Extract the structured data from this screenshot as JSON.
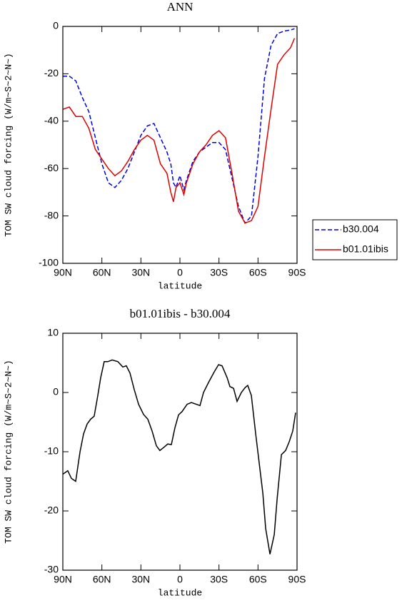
{
  "chart_data": [
    {
      "type": "line",
      "title": "ANN",
      "xlabel": "latitude",
      "ylabel": "TOM SW cloud forcing (W/m~S~2~N~)",
      "x": [
        90,
        85,
        80,
        75,
        70,
        65,
        60,
        55,
        50,
        45,
        40,
        35,
        30,
        25,
        20,
        15,
        10,
        7,
        5,
        3,
        0,
        -3,
        -5,
        -10,
        -15,
        -20,
        -25,
        -30,
        -35,
        -40,
        -45,
        -50,
        -55,
        -60,
        -65,
        -70,
        -75,
        -80,
        -85,
        -88
      ],
      "series": [
        {
          "name": "b30.004",
          "color": "#0000e0",
          "dashed": true,
          "values": [
            -21,
            -21,
            -23,
            -30,
            -36,
            -47,
            -58,
            -66,
            -68,
            -65,
            -60,
            -53,
            -46,
            -42,
            -41,
            -47,
            -53,
            -58,
            -66,
            -68,
            -63,
            -69,
            -65,
            -57,
            -53,
            -51,
            -49,
            -49,
            -52,
            -64,
            -76,
            -83,
            -80,
            -55,
            -22,
            -8,
            -3,
            -2,
            -1.5,
            -1
          ]
        },
        {
          "name": "b01.01ibis",
          "color": "#e00000",
          "dashed": false,
          "values": [
            -35,
            -34,
            -38,
            -38,
            -43,
            -52,
            -56,
            -60,
            -63,
            -61,
            -57,
            -52,
            -48,
            -46,
            -48,
            -58,
            -62,
            -70,
            -74,
            -68,
            -66,
            -71,
            -66,
            -58,
            -53,
            -50,
            -46,
            -44,
            -47,
            -62,
            -78,
            -83,
            -82,
            -76,
            -55,
            -35,
            -16,
            -12,
            -9,
            -5
          ]
        }
      ],
      "xlim": [
        90,
        -90
      ],
      "xticks": [
        {
          "value": 90,
          "label": "90N"
        },
        {
          "value": 60,
          "label": "60N"
        },
        {
          "value": 30,
          "label": "30N"
        },
        0,
        {
          "value": -30,
          "label": "30S"
        },
        {
          "value": -60,
          "label": "60S"
        },
        {
          "value": -90,
          "label": "90S"
        }
      ],
      "ylim": [
        -100,
        0
      ],
      "yticks": [
        -100,
        -80,
        -60,
        -40,
        -20,
        0
      ],
      "legend": "right"
    },
    {
      "type": "line",
      "title": "b01.01ibis - b30.004",
      "xlabel": "latitude",
      "ylabel": "TOM SW cloud forcing (W/m~S~2~N~)",
      "x": [
        90,
        86.2,
        83.4,
        80.1,
        76.8,
        74.1,
        71.3,
        68.6,
        65.9,
        63.1,
        60.9,
        58.2,
        55.4,
        52.1,
        47.7,
        43.9,
        41.2,
        38.4,
        35.1,
        31.8,
        28,
        24.7,
        21.4,
        18.1,
        15.4,
        12.1,
        9.4,
        6.6,
        3.9,
        1.1,
        -1.7,
        -5.5,
        -8.8,
        -12.6,
        -15.4,
        -18.1,
        -22,
        -26.4,
        -29.7,
        -32.4,
        -36.3,
        -38.4,
        -41.2,
        -43.9,
        -47.2,
        -50,
        -52.1,
        -54.9,
        -58.2,
        -61.5,
        -63.7,
        -65.9,
        -69.2,
        -72.5,
        -74.7,
        -78,
        -81.2,
        -84,
        -86.7,
        -88.9
      ],
      "values": [
        -13.8,
        -13.2,
        -14.5,
        -15,
        -10,
        -7,
        -5.3,
        -4.5,
        -4,
        -0.5,
        2.5,
        5.2,
        5.2,
        5.5,
        5.2,
        4.3,
        4.5,
        3.3,
        0.5,
        -2,
        -3.7,
        -4.5,
        -6.5,
        -9,
        -9.8,
        -9.2,
        -8.7,
        -8.8,
        -6,
        -3.8,
        -3.2,
        -2,
        -1.7,
        -2,
        -2.2,
        0,
        1.7,
        3.5,
        4.7,
        4.5,
        2.5,
        1,
        0.7,
        -1.5,
        0,
        0.8,
        1.2,
        -0.5,
        -7,
        -13,
        -17,
        -23,
        -27.3,
        -24,
        -18,
        -10.5,
        -9.8,
        -8.3,
        -6.5,
        -3.4
      ],
      "color": "#000000",
      "xlim": [
        90,
        -90
      ],
      "xticks": [
        {
          "value": 90,
          "label": "90N"
        },
        {
          "value": 60,
          "label": "60N"
        },
        {
          "value": 30,
          "label": "30N"
        },
        0,
        {
          "value": -30,
          "label": "30S"
        },
        {
          "value": -60,
          "label": "60S"
        },
        {
          "value": -90,
          "label": "90S"
        }
      ],
      "ylim": [
        -30,
        10
      ],
      "yticks": [
        -30,
        -20,
        -10,
        0,
        10
      ]
    }
  ]
}
